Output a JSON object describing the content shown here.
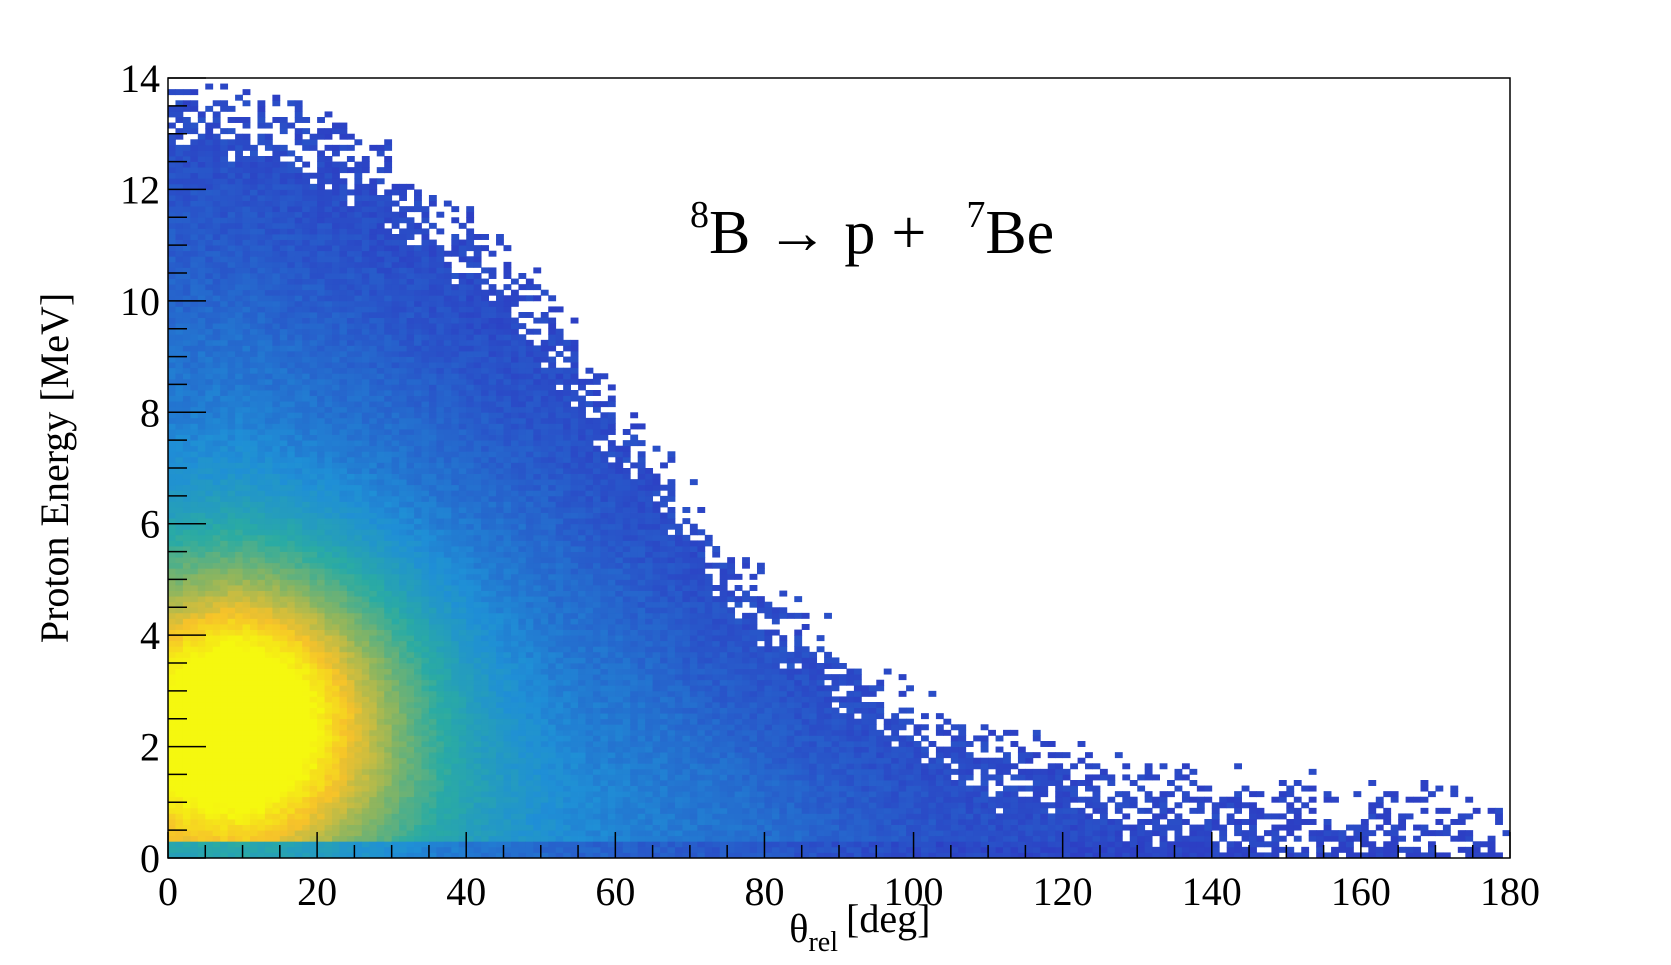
{
  "chart_data": {
    "type": "heatmap",
    "title": "",
    "annotation": {
      "parent_mass": "8",
      "parent": "B",
      "arrow": "→",
      "product1": "p",
      "plus": "+",
      "product2_mass": "7",
      "product2": "Be"
    },
    "xlabel": {
      "symbol": "θ",
      "subscript": "rel",
      "unit": "[deg]"
    },
    "ylabel": "Proton Energy [MeV]",
    "xlim": [
      0,
      180
    ],
    "ylim": [
      0,
      14
    ],
    "x_ticks": [
      "0",
      "20",
      "40",
      "60",
      "80",
      "100",
      "120",
      "140",
      "160",
      "180"
    ],
    "y_ticks": [
      "0",
      "2",
      "4",
      "6",
      "8",
      "10",
      "12",
      "14"
    ],
    "grid": false,
    "colormap": "viridis-like (blue → teal → green → yellow)",
    "peak": {
      "x": 10,
      "y": 2.7
    },
    "upper_edge": [
      {
        "x": 0,
        "y": 13.5
      },
      {
        "x": 20,
        "y": 12.8
      },
      {
        "x": 30,
        "y": 12.0
      },
      {
        "x": 40,
        "y": 11.0
      },
      {
        "x": 50,
        "y": 9.7
      },
      {
        "x": 60,
        "y": 7.8
      },
      {
        "x": 70,
        "y": 6.0
      },
      {
        "x": 80,
        "y": 4.6
      },
      {
        "x": 90,
        "y": 3.3
      },
      {
        "x": 100,
        "y": 2.4
      },
      {
        "x": 110,
        "y": 1.8
      },
      {
        "x": 120,
        "y": 1.4
      },
      {
        "x": 130,
        "y": 1.0
      },
      {
        "x": 140,
        "y": 0.8
      },
      {
        "x": 150,
        "y": 0.7
      },
      {
        "x": 160,
        "y": 0.6
      },
      {
        "x": 178,
        "y": 0.4
      }
    ],
    "colors": {
      "low": "#2c3fc4",
      "mid_low": "#1f8fd6",
      "mid": "#2aaba3",
      "mid_high": "#8bb560",
      "high": "#f6c22a",
      "peak": "#f5f80f"
    }
  }
}
